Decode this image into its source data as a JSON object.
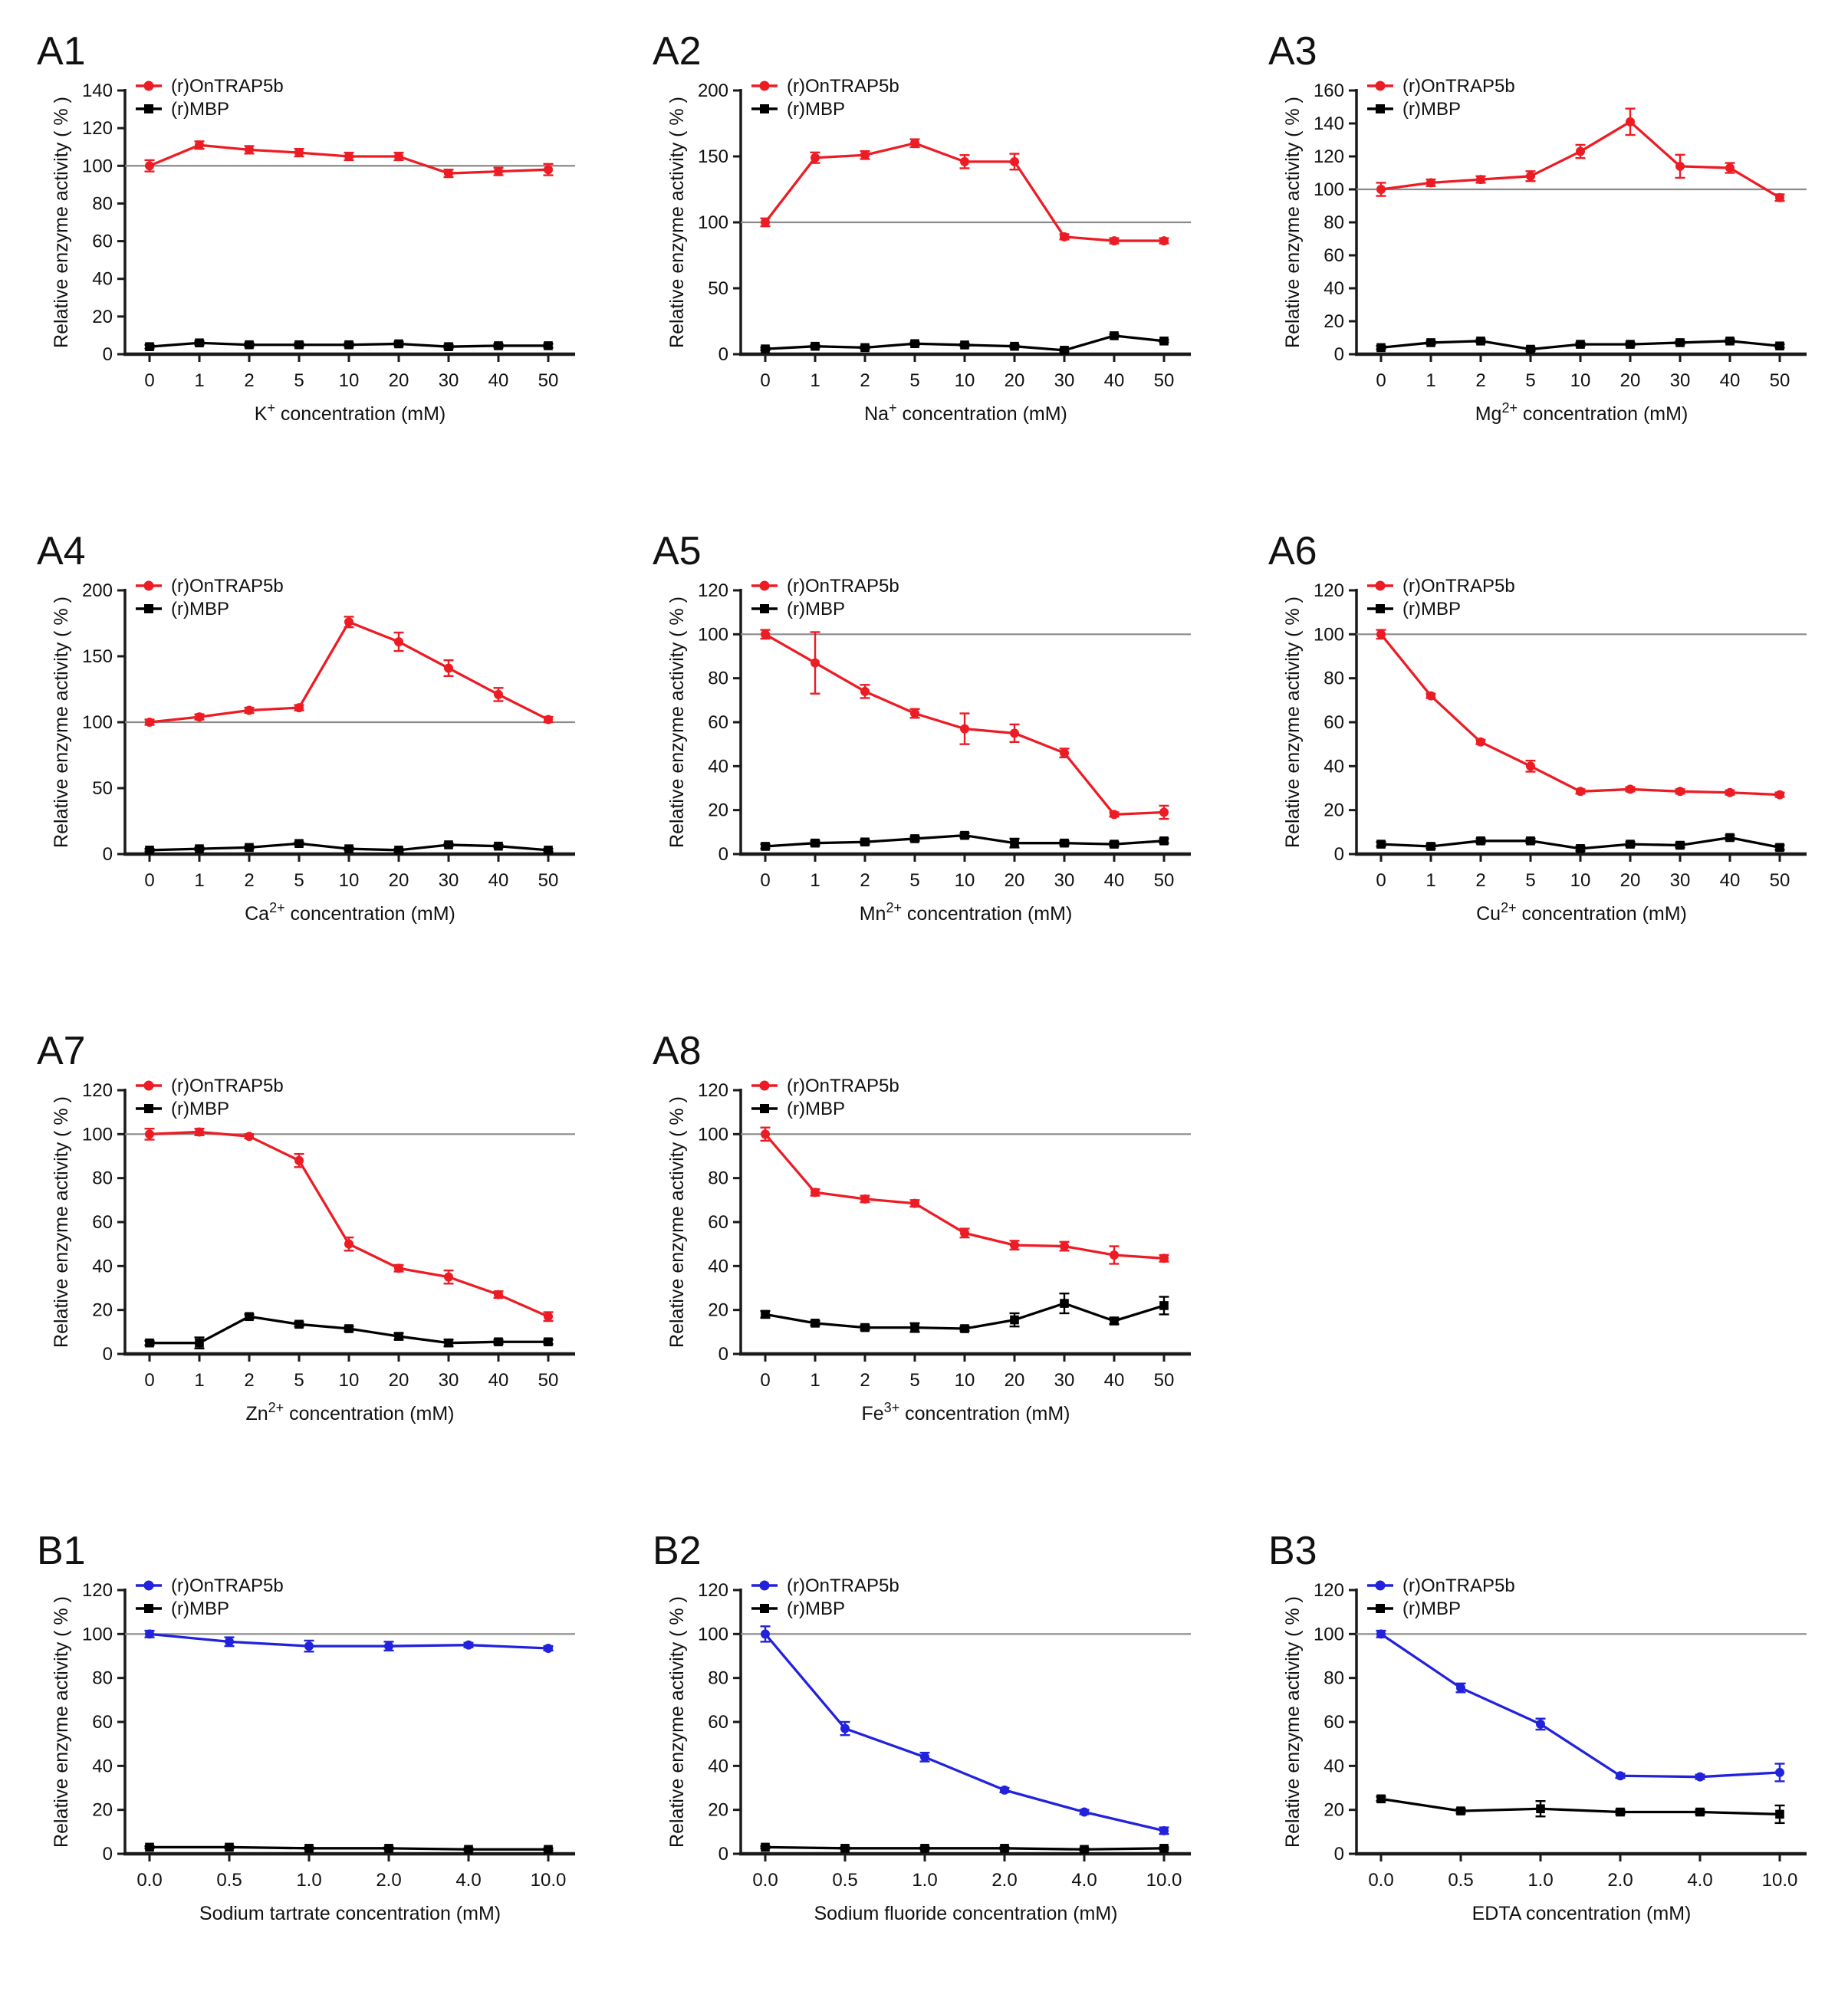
{
  "figure": {
    "background": "#ffffff",
    "ylabel": "Relative enzyme activity ( % )",
    "legend": {
      "series1": "(r)OnTRAP5b",
      "series2": "(r)MBP"
    }
  },
  "colors": {
    "red_accent": "#ED1C24",
    "blue_accent": "#2222DD",
    "black": "#000000",
    "reference_line": "#8a8a8a",
    "axis": "#1a1a1a",
    "text": "#111111"
  },
  "chart_data": [
    {
      "id": "A1",
      "slot": 0,
      "type": "line",
      "panel_label": "A1",
      "xlabel": {
        "pre": "K",
        "sup": "+",
        "post": " concentration (mM)"
      },
      "categories": [
        "0",
        "1",
        "2",
        "5",
        "10",
        "20",
        "30",
        "40",
        "50"
      ],
      "ylim": [
        0,
        140
      ],
      "ytick_step": 20,
      "reference_y": 100,
      "grid": false,
      "legend_position": "top-left",
      "series": [
        {
          "name": "(r)OnTRAP5b",
          "color": "#ED1C24",
          "marker": "circle",
          "values": [
            100,
            111,
            108.5,
            107,
            105,
            105,
            96,
            97,
            98
          ],
          "errors": [
            3,
            2,
            2,
            2,
            2,
            2,
            2,
            2,
            3
          ]
        },
        {
          "name": "(r)MBP",
          "color": "#000000",
          "marker": "square",
          "values": [
            4,
            6,
            5,
            5,
            5,
            5.5,
            4,
            4.5,
            4.5
          ],
          "errors": [
            1,
            1,
            1,
            1,
            1,
            1,
            1,
            1,
            1
          ]
        }
      ]
    },
    {
      "id": "A2",
      "slot": 1,
      "type": "line",
      "panel_label": "A2",
      "xlabel": {
        "pre": "Na",
        "sup": "+",
        "post": " concentration (mM)"
      },
      "categories": [
        "0",
        "1",
        "2",
        "5",
        "10",
        "20",
        "30",
        "40",
        "50"
      ],
      "ylim": [
        0,
        200
      ],
      "ytick_step": 50,
      "reference_y": 100,
      "grid": false,
      "legend_position": "top-left",
      "series": [
        {
          "name": "(r)OnTRAP5b",
          "color": "#ED1C24",
          "marker": "circle",
          "values": [
            100,
            149,
            151,
            160,
            146,
            146,
            89,
            86,
            86
          ],
          "errors": [
            3,
            4,
            3,
            3,
            5,
            6,
            2,
            2,
            2
          ]
        },
        {
          "name": "(r)MBP",
          "color": "#000000",
          "marker": "square",
          "values": [
            4,
            6,
            5,
            8,
            7,
            6,
            3,
            14,
            10
          ],
          "errors": [
            1,
            1,
            1,
            1,
            1,
            1,
            1,
            1,
            1
          ]
        }
      ]
    },
    {
      "id": "A3",
      "slot": 2,
      "type": "line",
      "panel_label": "A3",
      "xlabel": {
        "pre": "Mg",
        "sup": "2+",
        "post": " concentration (mM)"
      },
      "categories": [
        "0",
        "1",
        "2",
        "5",
        "10",
        "20",
        "30",
        "40",
        "50"
      ],
      "ylim": [
        0,
        160
      ],
      "ytick_step": 20,
      "reference_y": 100,
      "grid": false,
      "legend_position": "top-left",
      "series": [
        {
          "name": "(r)OnTRAP5b",
          "color": "#ED1C24",
          "marker": "circle",
          "values": [
            100,
            104,
            106,
            108,
            123,
            141,
            114,
            113,
            95
          ],
          "errors": [
            4,
            2,
            2,
            3,
            4,
            8,
            7,
            3,
            2
          ]
        },
        {
          "name": "(r)MBP",
          "color": "#000000",
          "marker": "square",
          "values": [
            4,
            7,
            8,
            3,
            6,
            6,
            7,
            8,
            5
          ],
          "errors": [
            1,
            1,
            1,
            1,
            1,
            1,
            1,
            1,
            1
          ]
        }
      ]
    },
    {
      "id": "A4",
      "slot": 3,
      "type": "line",
      "panel_label": "A4",
      "xlabel": {
        "pre": "Ca",
        "sup": "2+",
        "post": " concentration (mM)"
      },
      "categories": [
        "0",
        "1",
        "2",
        "5",
        "10",
        "20",
        "30",
        "40",
        "50"
      ],
      "ylim": [
        0,
        200
      ],
      "ytick_step": 50,
      "reference_y": 100,
      "grid": false,
      "legend_position": "top-left",
      "series": [
        {
          "name": "(r)OnTRAP5b",
          "color": "#ED1C24",
          "marker": "circle",
          "values": [
            100,
            104,
            109,
            111,
            176,
            161,
            141,
            121,
            102
          ],
          "errors": [
            2,
            2,
            2,
            2,
            4,
            7,
            6,
            5,
            2
          ]
        },
        {
          "name": "(r)MBP",
          "color": "#000000",
          "marker": "square",
          "values": [
            3,
            4,
            5,
            8,
            4,
            3,
            7,
            6,
            3
          ],
          "errors": [
            1,
            1,
            1,
            1,
            1,
            1,
            1,
            1,
            1
          ]
        }
      ]
    },
    {
      "id": "A5",
      "slot": 4,
      "type": "line",
      "panel_label": "A5",
      "xlabel": {
        "pre": "Mn",
        "sup": "2+",
        "post": " concentration (mM)"
      },
      "categories": [
        "0",
        "1",
        "2",
        "5",
        "10",
        "20",
        "30",
        "40",
        "50"
      ],
      "ylim": [
        0,
        120
      ],
      "ytick_step": 20,
      "reference_y": 100,
      "grid": false,
      "legend_position": "top-left",
      "series": [
        {
          "name": "(r)OnTRAP5b",
          "color": "#ED1C24",
          "marker": "circle",
          "values": [
            100,
            87,
            74,
            64,
            57,
            55,
            46,
            18,
            19
          ],
          "errors": [
            2,
            14,
            3,
            2,
            7,
            4,
            2,
            1,
            3
          ]
        },
        {
          "name": "(r)MBP",
          "color": "#000000",
          "marker": "square",
          "values": [
            3.5,
            5,
            5.5,
            7,
            8.5,
            5,
            5,
            4.5,
            6
          ],
          "errors": [
            1,
            1,
            1,
            1,
            1,
            2,
            1,
            1,
            1
          ]
        }
      ]
    },
    {
      "id": "A6",
      "slot": 5,
      "type": "line",
      "panel_label": "A6",
      "xlabel": {
        "pre": "Cu",
        "sup": "2+",
        "post": " concentration (mM)"
      },
      "categories": [
        "0",
        "1",
        "2",
        "5",
        "10",
        "20",
        "30",
        "40",
        "50"
      ],
      "ylim": [
        0,
        120
      ],
      "ytick_step": 20,
      "reference_y": 100,
      "grid": false,
      "legend_position": "top-left",
      "series": [
        {
          "name": "(r)OnTRAP5b",
          "color": "#ED1C24",
          "marker": "circle",
          "values": [
            100,
            72,
            51,
            40,
            28.5,
            29.5,
            28.5,
            28,
            27
          ],
          "errors": [
            2,
            1,
            1,
            2.5,
            1,
            1,
            1,
            1,
            1
          ]
        },
        {
          "name": "(r)MBP",
          "color": "#000000",
          "marker": "square",
          "values": [
            4.5,
            3.5,
            6,
            6,
            2.5,
            4.5,
            4,
            7.5,
            3
          ],
          "errors": [
            1,
            1,
            1,
            1,
            1,
            1,
            1,
            1,
            1
          ]
        }
      ]
    },
    {
      "id": "A7",
      "slot": 6,
      "type": "line",
      "panel_label": "A7",
      "xlabel": {
        "pre": "Zn",
        "sup": "2+",
        "post": " concentration (mM)"
      },
      "categories": [
        "0",
        "1",
        "2",
        "5",
        "10",
        "20",
        "30",
        "40",
        "50"
      ],
      "ylim": [
        0,
        120
      ],
      "ytick_step": 20,
      "reference_y": 100,
      "grid": false,
      "legend_position": "top-left",
      "series": [
        {
          "name": "(r)OnTRAP5b",
          "color": "#ED1C24",
          "marker": "circle",
          "values": [
            100,
            101,
            99,
            88,
            50,
            39,
            35,
            27,
            17
          ],
          "errors": [
            2.5,
            1.5,
            1,
            3,
            3,
            1.5,
            3,
            1.5,
            2
          ]
        },
        {
          "name": "(r)MBP",
          "color": "#000000",
          "marker": "square",
          "values": [
            5,
            5,
            17,
            13.5,
            11.5,
            8,
            5,
            5.5,
            5.5
          ],
          "errors": [
            1,
            2.5,
            1,
            1,
            1,
            1.5,
            1.5,
            1,
            1
          ]
        }
      ]
    },
    {
      "id": "A8",
      "slot": 7,
      "type": "line",
      "panel_label": "A8",
      "xlabel": {
        "pre": "Fe",
        "sup": "3+",
        "post": " concentration (mM)"
      },
      "categories": [
        "0",
        "1",
        "2",
        "5",
        "10",
        "20",
        "30",
        "40",
        "50"
      ],
      "ylim": [
        0,
        120
      ],
      "ytick_step": 20,
      "reference_y": 100,
      "grid": false,
      "legend_position": "top-left",
      "series": [
        {
          "name": "(r)OnTRAP5b",
          "color": "#ED1C24",
          "marker": "circle",
          "values": [
            100,
            73.5,
            70.5,
            68.5,
            55,
            49.5,
            49,
            45,
            43.5
          ],
          "errors": [
            3,
            1.5,
            1.5,
            1.5,
            2,
            2,
            2,
            4,
            1.5
          ]
        },
        {
          "name": "(r)MBP",
          "color": "#000000",
          "marker": "square",
          "values": [
            18,
            14,
            12,
            12,
            11.5,
            15.5,
            23,
            15,
            22
          ],
          "errors": [
            1.5,
            1,
            1,
            2,
            1,
            3,
            4.5,
            1.5,
            4
          ]
        }
      ]
    },
    {
      "id": "B1",
      "slot": 9,
      "type": "line",
      "panel_label": "B1",
      "xlabel": {
        "pre": "Sodium tartrate concentration (mM)",
        "sup": "",
        "post": ""
      },
      "categories": [
        "0.0",
        "0.5",
        "1.0",
        "2.0",
        "4.0",
        "10.0"
      ],
      "ylim": [
        0,
        120
      ],
      "ytick_step": 20,
      "reference_y": 100,
      "grid": false,
      "legend_position": "top-left",
      "series": [
        {
          "name": "(r)OnTRAP5b",
          "color": "#2222DD",
          "marker": "circle",
          "values": [
            100,
            96.5,
            94.5,
            94.5,
            95,
            93.5
          ],
          "errors": [
            1.5,
            2,
            2.5,
            2,
            1,
            1
          ]
        },
        {
          "name": "(r)MBP",
          "color": "#000000",
          "marker": "square",
          "values": [
            3,
            3,
            2.5,
            2.5,
            2,
            2
          ],
          "errors": [
            0.5,
            0.5,
            0.5,
            0.5,
            0.5,
            0.5
          ]
        }
      ]
    },
    {
      "id": "B2",
      "slot": 10,
      "type": "line",
      "panel_label": "B2",
      "xlabel": {
        "pre": "Sodium fluoride concentration (mM)",
        "sup": "",
        "post": ""
      },
      "categories": [
        "0.0",
        "0.5",
        "1.0",
        "2.0",
        "4.0",
        "10.0"
      ],
      "ylim": [
        0,
        120
      ],
      "ytick_step": 20,
      "reference_y": 100,
      "grid": false,
      "legend_position": "top-left",
      "series": [
        {
          "name": "(r)OnTRAP5b",
          "color": "#2222DD",
          "marker": "circle",
          "values": [
            100,
            57,
            44,
            29,
            19,
            10.5
          ],
          "errors": [
            3.5,
            3,
            2,
            1,
            1,
            1.5
          ]
        },
        {
          "name": "(r)MBP",
          "color": "#000000",
          "marker": "square",
          "values": [
            3,
            2.5,
            2.5,
            2.5,
            2,
            2.5
          ],
          "errors": [
            0.5,
            0.5,
            0.5,
            0.5,
            0.5,
            0.5
          ]
        }
      ]
    },
    {
      "id": "B3",
      "slot": 11,
      "type": "line",
      "panel_label": "B3",
      "xlabel": {
        "pre": "EDTA concentration (mM)",
        "sup": "",
        "post": ""
      },
      "categories": [
        "0.0",
        "0.5",
        "1.0",
        "2.0",
        "4.0",
        "10.0"
      ],
      "ylim": [
        0,
        120
      ],
      "ytick_step": 20,
      "reference_y": 100,
      "grid": false,
      "legend_position": "top-left",
      "series": [
        {
          "name": "(r)OnTRAP5b",
          "color": "#2222DD",
          "marker": "circle",
          "values": [
            100,
            75.5,
            59,
            35.5,
            35,
            37
          ],
          "errors": [
            1.5,
            2,
            2.5,
            1,
            1,
            4
          ]
        },
        {
          "name": "(r)MBP",
          "color": "#000000",
          "marker": "square",
          "values": [
            25,
            19.5,
            20.5,
            19,
            19,
            18
          ],
          "errors": [
            1,
            1,
            3.5,
            1,
            1,
            4
          ]
        }
      ]
    }
  ]
}
